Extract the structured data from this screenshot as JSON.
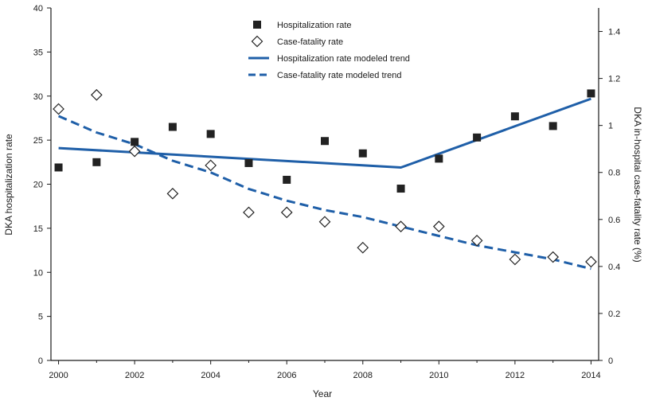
{
  "chart_data": {
    "type": "scatter",
    "title": "",
    "xlabel": "Year",
    "ylabel_left": "DKA hospitalization rate",
    "ylabel_right": "DKA in-hospital case-fatality rate (%)",
    "x": [
      2000,
      2001,
      2002,
      2003,
      2004,
      2005,
      2006,
      2007,
      2008,
      2009,
      2010,
      2011,
      2012,
      2013,
      2014
    ],
    "xlim": [
      1999.8,
      2014.2
    ],
    "ylim_left": [
      0,
      40
    ],
    "ylim_right": [
      0,
      1.5
    ],
    "x_ticks": [
      "2000",
      "2002",
      "2004",
      "2006",
      "2008",
      "2010",
      "2012",
      "2014"
    ],
    "y_left_ticks": [
      "0",
      "5",
      "10",
      "15",
      "20",
      "25",
      "30",
      "35",
      "40"
    ],
    "y_right_ticks": [
      "0",
      "0.2",
      "0.4",
      "0.6",
      "0.8",
      "1",
      "1.2",
      "1.4"
    ],
    "legend_position": "top-center",
    "series": [
      {
        "name": "Hospitalization rate",
        "kind": "markers",
        "marker": "filled-square",
        "axis": "left",
        "values": [
          21.9,
          22.5,
          24.8,
          26.5,
          25.7,
          22.4,
          20.5,
          24.9,
          23.5,
          19.5,
          22.9,
          25.3,
          27.7,
          26.6,
          30.3
        ]
      },
      {
        "name": "Case-fatality rate",
        "kind": "markers",
        "marker": "open-diamond",
        "axis": "right",
        "values": [
          1.07,
          1.13,
          0.89,
          0.71,
          0.83,
          0.63,
          0.63,
          0.59,
          0.48,
          0.57,
          0.57,
          0.51,
          0.43,
          0.44,
          0.42
        ]
      },
      {
        "name": "Hospitalization rate modeled trend",
        "kind": "line",
        "style": "solid",
        "axis": "left",
        "x": [
          2000,
          2009,
          2014
        ],
        "values": [
          24.1,
          21.9,
          29.7
        ]
      },
      {
        "name": "Case-fatality rate modeled trend",
        "kind": "line",
        "style": "dashed",
        "axis": "right",
        "x": [
          2000,
          2001,
          2002,
          2003,
          2004,
          2005,
          2006,
          2007,
          2008,
          2009,
          2010,
          2011,
          2012,
          2013,
          2014
        ],
        "values": [
          1.04,
          0.97,
          0.92,
          0.85,
          0.8,
          0.73,
          0.68,
          0.64,
          0.61,
          0.57,
          0.53,
          0.49,
          0.46,
          0.43,
          0.39
        ]
      }
    ],
    "colors": {
      "trend": "#1f5fa8",
      "marker": "#222222",
      "axis": "#1a1a1a"
    }
  }
}
